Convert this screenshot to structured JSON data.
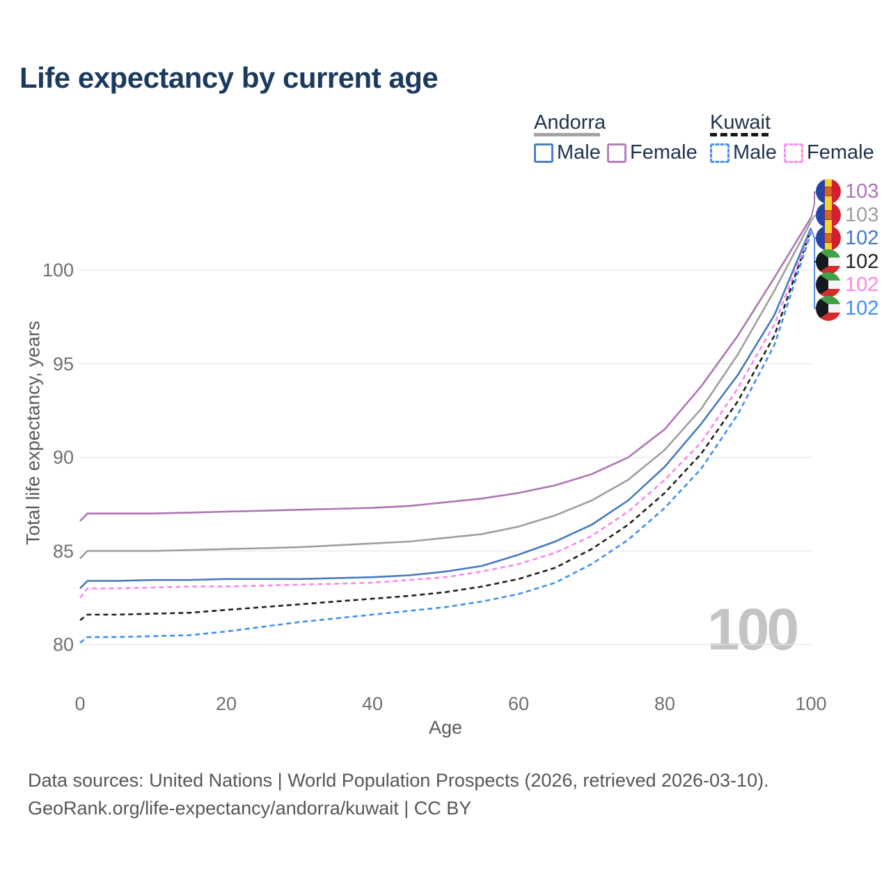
{
  "title": "Life expectancy by current age",
  "legend": {
    "groups": [
      {
        "country": "Andorra",
        "line_color": "#a3a3a3",
        "line_style": "solid",
        "items": [
          {
            "label": "Male",
            "color": "#4a7fc6",
            "style": "solid"
          },
          {
            "label": "Female",
            "color": "#b77fbc",
            "style": "solid"
          }
        ]
      },
      {
        "country": "Kuwait",
        "line_color": "#161616",
        "line_style": "dashed",
        "items": [
          {
            "label": "Male",
            "color": "#4a90f5",
            "style": "dashed"
          },
          {
            "label": "Female",
            "color": "#fb8bf0",
            "style": "dashed"
          }
        ]
      }
    ]
  },
  "axes": {
    "y_label": "Total life expectancy, years",
    "x_label": "Age",
    "y_ticks": [
      80,
      85,
      90,
      95,
      100
    ],
    "x_ticks": [
      0,
      20,
      40,
      60,
      80,
      100
    ]
  },
  "watermark": "100",
  "end_labels": [
    {
      "flag": "andorra",
      "value": "103",
      "color": "#ad74b5"
    },
    {
      "flag": "andorra",
      "value": "103",
      "color": "#9e9e9e"
    },
    {
      "flag": "andorra",
      "value": "102",
      "color": "#4579be"
    },
    {
      "flag": "kuwait",
      "value": "102",
      "color": "#1f1f1f"
    },
    {
      "flag": "kuwait",
      "value": "102",
      "color": "#fb85ea"
    },
    {
      "flag": "kuwait",
      "value": "102",
      "color": "#3f8df5"
    }
  ],
  "chart_data": {
    "type": "line",
    "title": "Life expectancy by current age",
    "xlabel": "Age",
    "ylabel": "Total life expectancy, years",
    "xlim": [
      0,
      100
    ],
    "ylim": [
      78.5,
      103.5
    ],
    "grid": "horizontal-only",
    "legend_position": "top-right",
    "x": [
      0,
      1,
      5,
      10,
      15,
      20,
      25,
      30,
      35,
      40,
      45,
      50,
      55,
      60,
      65,
      70,
      75,
      80,
      85,
      90,
      95,
      100
    ],
    "series": [
      {
        "name": "Andorra Female",
        "color": "#ad74b5",
        "dashed": false,
        "end_label": "103",
        "values": [
          86.6,
          87.0,
          87.0,
          87.0,
          87.05,
          87.1,
          87.15,
          87.2,
          87.25,
          87.3,
          87.4,
          87.6,
          87.8,
          88.1,
          88.5,
          89.1,
          90.0,
          91.5,
          93.8,
          96.5,
          99.6,
          102.8
        ]
      },
      {
        "name": "Andorra Both sexes",
        "color": "#9e9e9e",
        "dashed": false,
        "end_label": "103",
        "values": [
          84.6,
          85.0,
          85.0,
          85.0,
          85.05,
          85.1,
          85.15,
          85.2,
          85.3,
          85.4,
          85.5,
          85.7,
          85.9,
          86.3,
          86.9,
          87.7,
          88.8,
          90.4,
          92.6,
          95.5,
          98.9,
          102.6
        ]
      },
      {
        "name": "Andorra Male",
        "color": "#4579be",
        "dashed": false,
        "end_label": "102",
        "values": [
          83.0,
          83.4,
          83.4,
          83.45,
          83.45,
          83.5,
          83.5,
          83.5,
          83.55,
          83.6,
          83.7,
          83.9,
          84.2,
          84.8,
          85.5,
          86.4,
          87.7,
          89.5,
          91.8,
          94.4,
          97.6,
          102.25
        ]
      },
      {
        "name": "Kuwait Both sexes",
        "color": "#1f1f1f",
        "dashed": true,
        "end_label": "102",
        "values": [
          81.3,
          81.6,
          81.6,
          81.65,
          81.7,
          81.85,
          82.0,
          82.15,
          82.3,
          82.45,
          82.6,
          82.8,
          83.1,
          83.5,
          84.1,
          85.1,
          86.4,
          88.1,
          90.2,
          93.0,
          96.5,
          102.15
        ]
      },
      {
        "name": "Kuwait Female",
        "color": "#fb85ea",
        "dashed": true,
        "end_label": "102",
        "values": [
          82.5,
          83.0,
          83.0,
          83.05,
          83.1,
          83.1,
          83.15,
          83.2,
          83.25,
          83.3,
          83.45,
          83.6,
          83.9,
          84.3,
          84.9,
          85.8,
          87.1,
          88.8,
          90.8,
          93.7,
          97.1,
          102.1
        ]
      },
      {
        "name": "Kuwait Male",
        "color": "#3f8df5",
        "dashed": true,
        "end_label": "102",
        "values": [
          80.1,
          80.4,
          80.4,
          80.45,
          80.5,
          80.7,
          80.95,
          81.2,
          81.4,
          81.6,
          81.8,
          82.0,
          82.3,
          82.7,
          83.3,
          84.3,
          85.6,
          87.3,
          89.4,
          92.3,
          96.0,
          102.0
        ]
      }
    ]
  },
  "footer": {
    "line1": "Data sources: United Nations | World Population Prospects (2026, retrieved 2026-03-10).",
    "line2": "GeoRank.org/life-expectancy/andorra/kuwait | CC BY"
  }
}
